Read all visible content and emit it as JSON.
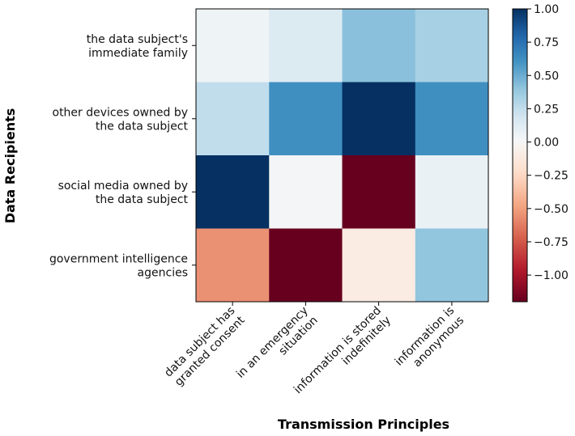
{
  "chart_data": {
    "type": "heatmap",
    "title": "",
    "xlabel": "Transmission Principles",
    "ylabel": "Data Recipients",
    "x_categories": [
      [
        "data subject has",
        "granted consent"
      ],
      [
        "in an emergency",
        "situation"
      ],
      [
        "information is stored",
        "indefinitely"
      ],
      [
        "information is",
        "anonymous"
      ]
    ],
    "y_categories": [
      [
        "the data subject's",
        "immediate family"
      ],
      [
        "other devices owned by",
        "the data subject"
      ],
      [
        "social media owned by",
        "the data subject"
      ],
      [
        "government intelligence",
        "agencies"
      ]
    ],
    "values": [
      [
        0.05,
        0.14,
        0.42,
        0.33
      ],
      [
        0.25,
        0.62,
        1.0,
        0.62
      ],
      [
        1.0,
        0.02,
        -1.2,
        0.07
      ],
      [
        -0.55,
        -1.2,
        -0.1,
        0.4
      ]
    ],
    "colormap": "RdBu",
    "vmin": -1.2,
    "vmax": 1.0,
    "colorbar": {
      "ticks": [
        1.0,
        0.75,
        0.5,
        0.25,
        0.0,
        -0.25,
        -0.5,
        -0.75,
        -1.0
      ],
      "tick_labels": [
        "1.00",
        "0.75",
        "0.50",
        "0.25",
        "0.00",
        "−0.25",
        "−0.50",
        "−0.75",
        "−1.00"
      ]
    }
  }
}
